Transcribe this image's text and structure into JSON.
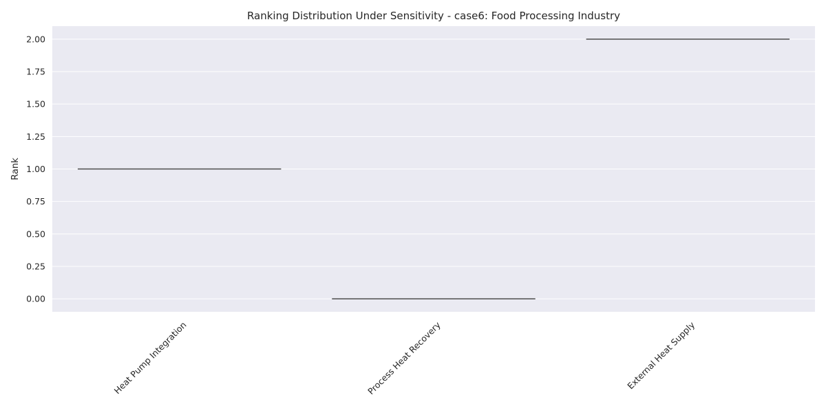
{
  "chart_data": {
    "type": "box",
    "title": "Ranking Distribution Under Sensitivity - case6: Food Processing Industry",
    "xlabel": "",
    "ylabel": "Rank",
    "categories": [
      "Heat Pump Integration",
      "Process Heat Recovery",
      "External Heat Supply"
    ],
    "values": [
      1,
      0,
      2
    ],
    "ylim": [
      -0.1,
      2.1
    ],
    "yticks": [
      "0.00",
      "0.25",
      "0.50",
      "0.75",
      "1.00",
      "1.25",
      "1.50",
      "1.75",
      "2.00"
    ],
    "grid": true,
    "colors": {
      "plot_bg": "#eaeaf2",
      "grid": "#ffffff",
      "median_line": "#4d4d4d",
      "text": "#262626"
    }
  }
}
